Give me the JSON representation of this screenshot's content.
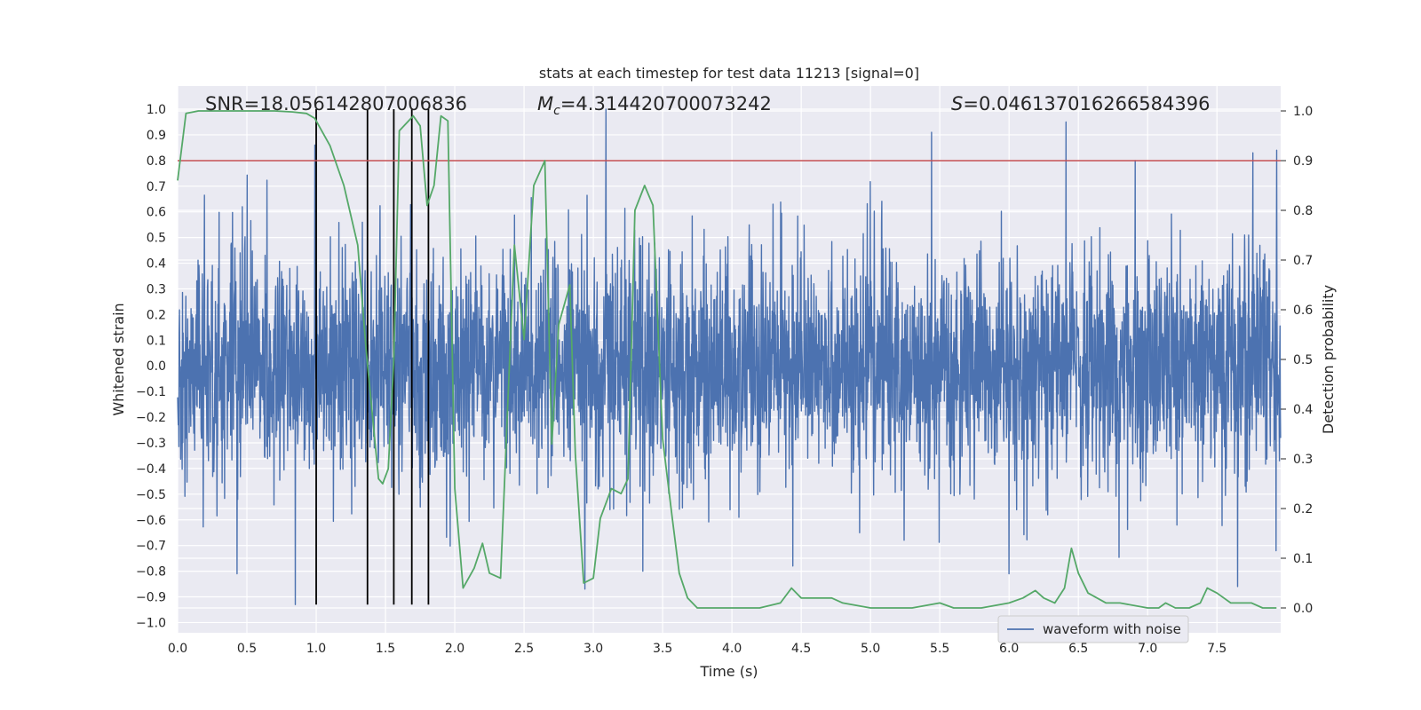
{
  "chart_data": {
    "type": "line",
    "title": "stats at each timestep for test data 11213 [signal=0]",
    "xlabel": "Time (s)",
    "ylabel": "Whitened strain",
    "ylabel_right": "Detection probability",
    "xlim": [
      0.0,
      7.96
    ],
    "ylim": [
      -1.04,
      1.09
    ],
    "ylim_right": [
      -0.05,
      1.05
    ],
    "xticks": [
      "0.0",
      "0.5",
      "1.0",
      "1.5",
      "2.0",
      "2.5",
      "3.0",
      "3.5",
      "4.0",
      "4.5",
      "5.0",
      "5.5",
      "6.0",
      "6.5",
      "7.0",
      "7.5"
    ],
    "yticks_left": [
      "1.0",
      "0.9",
      "0.8",
      "0.7",
      "0.6",
      "0.5",
      "0.4",
      "0.3",
      "0.2",
      "0.1",
      "0.0",
      "−0.1",
      "−0.2",
      "−0.3",
      "−0.4",
      "−0.5",
      "−0.6",
      "−0.7",
      "−0.8",
      "−0.9",
      "−1.0"
    ],
    "yticks_right": [
      "1.0",
      "0.9",
      "0.8",
      "0.7",
      "0.6",
      "0.5",
      "0.4",
      "0.3",
      "0.2",
      "0.1",
      "0.0"
    ],
    "annotations": {
      "snr": "SNR=18.056142807006836",
      "mc_symbol": "M",
      "mc_sub": "c",
      "mc_value": "=4.314420700073242",
      "s_symbol": "S",
      "s_value": "=0.046137016266584396"
    },
    "legend": {
      "label": "waveform with noise",
      "position": "lower-right"
    },
    "threshold_right": 0.9,
    "vertical_markers_x": [
      1.0,
      1.37,
      1.56,
      1.69,
      1.81
    ],
    "marker_y_range": [
      -0.93,
      1.0
    ],
    "waveform": {
      "name": "waveform with noise",
      "sample_step": 0.0022,
      "seed": 11213,
      "envelope_mean_abs": 0.2,
      "notable_peaks": [
        {
          "x": 0.99,
          "y": 0.86
        },
        {
          "x": 3.09,
          "y": 1.0
        },
        {
          "x": 6.41,
          "y": 0.95
        },
        {
          "x": 5.44,
          "y": 0.91
        },
        {
          "x": 7.76,
          "y": 0.83
        },
        {
          "x": 7.93,
          "y": 0.84
        },
        {
          "x": 0.85,
          "y": -0.93
        },
        {
          "x": 2.94,
          "y": -0.87
        },
        {
          "x": 7.65,
          "y": -0.86
        },
        {
          "x": 6.0,
          "y": -0.81
        },
        {
          "x": 0.43,
          "y": -0.81
        },
        {
          "x": 4.44,
          "y": -0.78
        }
      ]
    },
    "series": [
      {
        "name": "detection probability",
        "color": "#55a868",
        "x": [
          0.0,
          0.06,
          0.15,
          0.3,
          0.5,
          0.7,
          0.83,
          0.93,
          0.99,
          1.1,
          1.2,
          1.3,
          1.36,
          1.45,
          1.48,
          1.52,
          1.56,
          1.6,
          1.7,
          1.75,
          1.8,
          1.85,
          1.9,
          1.95,
          2.0,
          2.06,
          2.14,
          2.2,
          2.25,
          2.33,
          2.43,
          2.5,
          2.57,
          2.65,
          2.7,
          2.75,
          2.83,
          2.87,
          2.93,
          3.0,
          3.05,
          3.13,
          3.2,
          3.25,
          3.3,
          3.37,
          3.43,
          3.5,
          3.57,
          3.62,
          3.68,
          3.75,
          3.83,
          4.0,
          4.2,
          4.35,
          4.43,
          4.5,
          4.57,
          4.65,
          4.72,
          4.8,
          5.0,
          5.3,
          5.5,
          5.6,
          5.8,
          6.0,
          6.1,
          6.19,
          6.25,
          6.33,
          6.4,
          6.45,
          6.5,
          6.57,
          6.7,
          6.8,
          7.0,
          7.08,
          7.13,
          7.2,
          7.3,
          7.38,
          7.43,
          7.5,
          7.6,
          7.67,
          7.75,
          7.83,
          7.93
        ],
        "values": [
          0.86,
          0.995,
          1.0,
          1.0,
          1.0,
          1.0,
          0.998,
          0.995,
          0.985,
          0.93,
          0.85,
          0.73,
          0.52,
          0.26,
          0.25,
          0.28,
          0.5,
          0.96,
          0.99,
          0.97,
          0.81,
          0.85,
          0.99,
          0.98,
          0.24,
          0.04,
          0.08,
          0.13,
          0.07,
          0.06,
          0.73,
          0.54,
          0.85,
          0.9,
          0.33,
          0.57,
          0.65,
          0.31,
          0.05,
          0.06,
          0.18,
          0.24,
          0.23,
          0.26,
          0.8,
          0.85,
          0.81,
          0.34,
          0.18,
          0.07,
          0.02,
          0.0,
          0.0,
          0.0,
          0.0,
          0.01,
          0.04,
          0.02,
          0.02,
          0.02,
          0.02,
          0.01,
          0.0,
          0.0,
          0.01,
          0.0,
          0.0,
          0.01,
          0.02,
          0.035,
          0.02,
          0.01,
          0.04,
          0.12,
          0.07,
          0.03,
          0.01,
          0.01,
          0.0,
          0.0,
          0.01,
          0.0,
          0.0,
          0.01,
          0.04,
          0.03,
          0.01,
          0.01,
          0.01,
          0.0,
          0.0
        ]
      }
    ]
  }
}
